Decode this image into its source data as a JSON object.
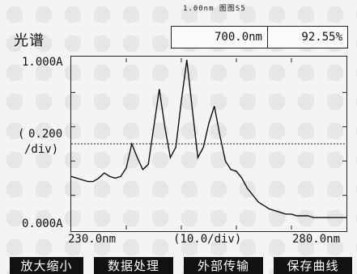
{
  "screen": {
    "title": "光谱",
    "status_small": "1.00nm 图图S5",
    "readout": {
      "wavelength": "700.0nm",
      "value": "92.55%"
    }
  },
  "chart_data": {
    "type": "line",
    "y_tick_top": "1.000A",
    "y_scale_label_line1": "0.200",
    "y_scale_label_line2": "/div)",
    "y_scale_label_open": "(",
    "y_tick_bottom": "0.000A",
    "x_start_label": "230.0nm",
    "x_scale_label": "(10.0/div)",
    "x_end_label": "280.0nm",
    "xlim": [
      230,
      280
    ],
    "ylim": [
      0,
      1
    ],
    "reference_line_y": 0.5,
    "x": [
      230,
      231,
      232,
      233,
      234,
      235,
      236,
      237,
      238,
      239,
      240,
      241,
      242,
      243,
      244,
      245,
      246,
      247,
      248,
      249,
      250,
      251,
      252,
      253,
      254,
      255,
      256,
      257,
      258,
      259,
      260,
      261,
      262,
      263,
      264,
      265,
      266,
      267,
      268,
      269,
      270,
      271,
      272,
      273,
      274,
      275,
      276,
      277,
      278,
      279,
      280
    ],
    "y": [
      0.31,
      0.3,
      0.29,
      0.28,
      0.28,
      0.3,
      0.33,
      0.31,
      0.3,
      0.31,
      0.36,
      0.5,
      0.42,
      0.35,
      0.38,
      0.6,
      0.82,
      0.6,
      0.42,
      0.48,
      0.75,
      0.99,
      0.7,
      0.42,
      0.48,
      0.62,
      0.72,
      0.55,
      0.4,
      0.35,
      0.34,
      0.3,
      0.24,
      0.2,
      0.16,
      0.14,
      0.12,
      0.11,
      0.1,
      0.09,
      0.09,
      0.08,
      0.08,
      0.08,
      0.07,
      0.07,
      0.07,
      0.07,
      0.07,
      0.07,
      0.07
    ]
  },
  "menu": {
    "zoom": "放大缩小",
    "process": "数据处理",
    "transfer": "外部传输",
    "save": "保存曲线"
  }
}
